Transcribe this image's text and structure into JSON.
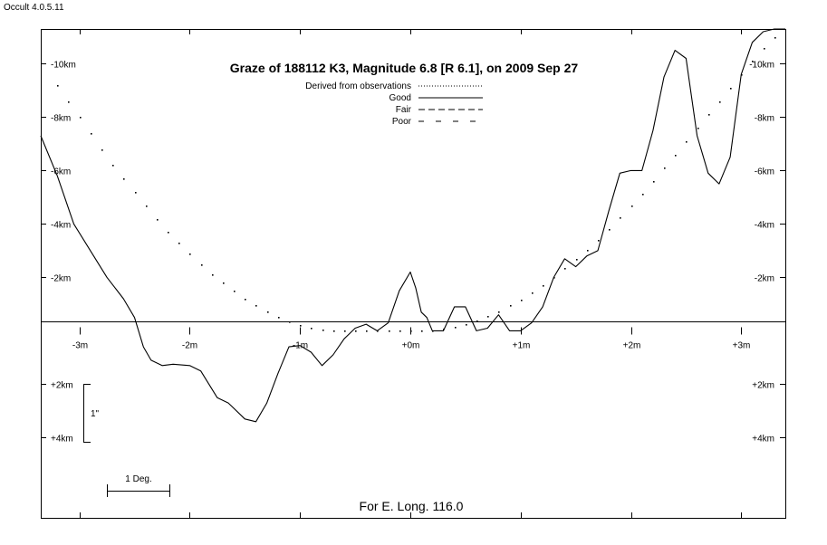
{
  "app": {
    "version": "Occult 4.0.5.11"
  },
  "chart_data": {
    "type": "line",
    "title": "Graze of  188112 K3,  Magnitude 6.8 [R 6.1],  on 2009 Sep 27",
    "footer": "For E. Long. 116.0",
    "xlabel": "",
    "ylabel": "",
    "xlim": [
      -3.35,
      3.4
    ],
    "ylim": [
      -11.3,
      7.0
    ],
    "x_ticks": [
      {
        "value": -3,
        "label": "-3m"
      },
      {
        "value": -2,
        "label": "-2m"
      },
      {
        "value": -1,
        "label": "-1m"
      },
      {
        "value": 0,
        "label": "+0m"
      },
      {
        "value": 1,
        "label": "+1m"
      },
      {
        "value": 2,
        "label": "+2m"
      },
      {
        "value": 3,
        "label": "+3m"
      }
    ],
    "y_ticks": [
      {
        "value": -10,
        "label": "-10km"
      },
      {
        "value": -8,
        "label": "-8km"
      },
      {
        "value": -6,
        "label": "-6km"
      },
      {
        "value": -4,
        "label": "-4km"
      },
      {
        "value": -2,
        "label": "-2km"
      },
      {
        "value": 2,
        "label": "+2km"
      },
      {
        "value": 4,
        "label": "+4km"
      }
    ],
    "legend": {
      "placement": "top-center",
      "entries": [
        {
          "label": "Derived from observations",
          "style": "dotted"
        },
        {
          "label": "Good",
          "style": "solid"
        },
        {
          "label": "Fair",
          "style": "dashed"
        },
        {
          "label": "Poor",
          "style": "long-dashed"
        }
      ]
    },
    "scale_bars": {
      "vertical_label": "1\"",
      "horizontal_label": "1 Deg."
    },
    "series": [
      {
        "style": "solid",
        "x": [
          -3.35,
          -3.2,
          -3.05,
          -2.9,
          -2.75,
          -2.6,
          -2.5,
          -2.42,
          -2.35,
          -2.25,
          -2.15,
          -2.0,
          -1.9,
          -1.75,
          -1.65,
          -1.5,
          -1.4,
          -1.3,
          -1.2,
          -1.1,
          -1.0,
          -0.9,
          -0.8,
          -0.7,
          -0.6,
          -0.5,
          -0.4,
          -0.3,
          -0.2,
          -0.1,
          0.0,
          0.05,
          0.1,
          0.15,
          0.2,
          0.3,
          0.4,
          0.5,
          0.6,
          0.7,
          0.8,
          0.9,
          0.95,
          1.0,
          1.1,
          1.2,
          1.3,
          1.4,
          1.5,
          1.6,
          1.7,
          1.8,
          1.9,
          2.0,
          2.1,
          2.2,
          2.3,
          2.4,
          2.5,
          2.6,
          2.7,
          2.8,
          2.9,
          3.0,
          3.1,
          3.2,
          3.3,
          3.4
        ],
        "y": [
          -7.3,
          -5.8,
          -4.0,
          -3.0,
          -2.0,
          -1.2,
          -0.5,
          0.6,
          1.1,
          1.3,
          1.25,
          1.3,
          1.5,
          2.5,
          2.7,
          3.3,
          3.4,
          2.7,
          1.6,
          0.6,
          0.55,
          0.8,
          1.3,
          0.9,
          0.3,
          -0.1,
          -0.25,
          0.0,
          -0.3,
          -1.5,
          -2.2,
          -1.6,
          -0.7,
          -0.5,
          0.0,
          0.0,
          -0.9,
          -0.9,
          0.0,
          -0.1,
          -0.6,
          0.0,
          0.0,
          0.0,
          -0.3,
          -0.9,
          -2.0,
          -2.7,
          -2.4,
          -2.8,
          -3.0,
          -4.5,
          -5.9,
          -6.0,
          -6.0,
          -7.5,
          -9.5,
          -10.5,
          -10.2,
          -7.3,
          -5.9,
          -5.5,
          -6.5,
          -9.6,
          -10.8,
          -11.2,
          -11.3,
          -11.3
        ]
      },
      {
        "style": "dotted",
        "x": [
          -3.2,
          -3.1,
          -3.0,
          -2.9,
          -2.8,
          -2.7,
          -2.6,
          -2.5,
          -2.4,
          -2.3,
          -2.2,
          -2.1,
          -2.0,
          -1.9,
          -1.8,
          -1.7,
          -1.6,
          -1.5,
          -1.4,
          -1.3,
          -1.2,
          -1.1,
          -1.0,
          -0.9,
          -0.8,
          -0.7,
          -0.6,
          -0.5,
          -0.4,
          -0.3,
          -0.2,
          -0.1,
          0.0,
          0.1,
          0.2,
          0.3,
          0.4,
          0.5,
          0.6,
          0.7,
          0.8,
          0.9,
          1.0,
          1.1,
          1.2,
          1.3,
          1.4,
          1.5,
          1.6,
          1.7,
          1.8,
          1.9,
          2.0,
          2.1,
          2.2,
          2.3,
          2.4,
          2.5,
          2.6,
          2.7,
          2.8,
          2.9,
          3.0,
          3.1,
          3.2,
          3.3
        ],
        "y": [
          -9.2,
          -8.6,
          -8.0,
          -7.4,
          -6.8,
          -6.2,
          -5.7,
          -5.2,
          -4.7,
          -4.2,
          -3.7,
          -3.3,
          -2.9,
          -2.5,
          -2.1,
          -1.8,
          -1.5,
          -1.2,
          -0.95,
          -0.72,
          -0.52,
          -0.36,
          -0.23,
          -0.13,
          -0.06,
          -0.01,
          0.0,
          0.0,
          0.0,
          0.0,
          0.0,
          0.0,
          0.0,
          0.0,
          -0.02,
          -0.08,
          -0.16,
          -0.26,
          -0.4,
          -0.56,
          -0.74,
          -0.95,
          -1.18,
          -1.44,
          -1.72,
          -2.02,
          -2.34,
          -2.68,
          -3.04,
          -3.42,
          -3.82,
          -4.24,
          -4.68,
          -5.14,
          -5.62,
          -6.1,
          -6.6,
          -7.1,
          -7.6,
          -8.1,
          -8.6,
          -9.1,
          -9.6,
          -10.1,
          -10.6,
          -11.0
        ]
      }
    ]
  }
}
